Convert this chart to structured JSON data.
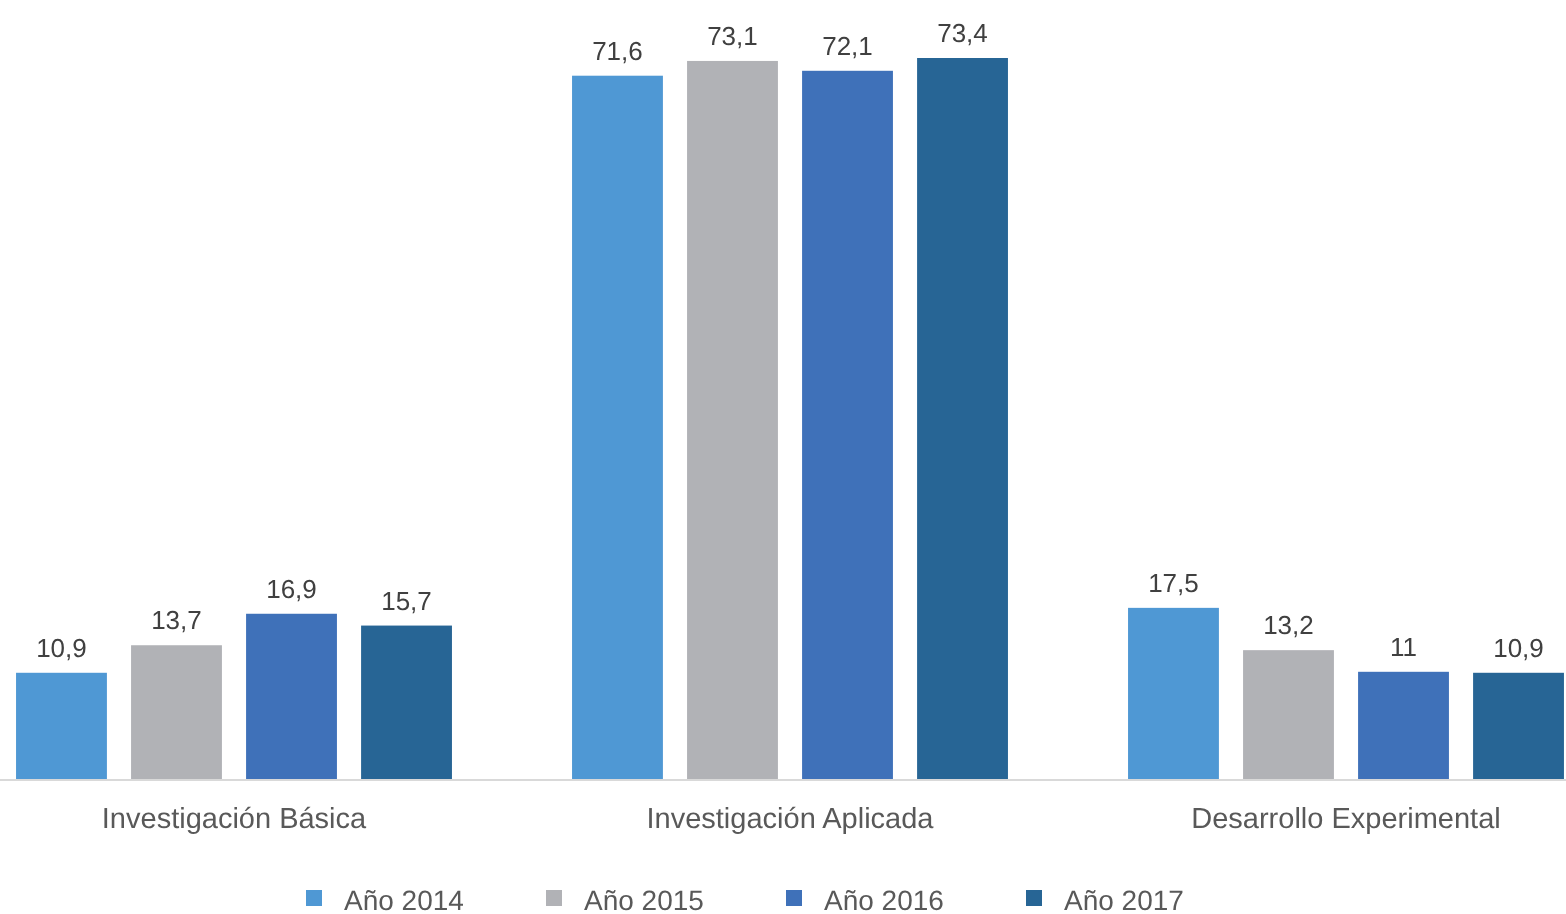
{
  "chart_data": {
    "type": "bar",
    "categories": [
      "Investigación Básica",
      "Investigación Aplicada",
      "Desarrollo Experimental"
    ],
    "series": [
      {
        "name": "Año 2014",
        "color": "#4f98d4",
        "values": [
          10.9,
          71.6,
          17.5
        ],
        "value_labels": [
          "10,9",
          "71,6",
          "17,5"
        ]
      },
      {
        "name": "Año 2015",
        "color": "#b1b2b6",
        "values": [
          13.7,
          73.1,
          13.2
        ],
        "value_labels": [
          "13,7",
          "73,1",
          "13,2"
        ]
      },
      {
        "name": "Año 2016",
        "color": "#3f71b9",
        "values": [
          16.9,
          72.1,
          11
        ],
        "value_labels": [
          "16,9",
          "72,1",
          "11"
        ]
      },
      {
        "name": "Año 2017",
        "color": "#276595",
        "values": [
          15.7,
          73.4,
          10.9
        ],
        "value_labels": [
          "15,7",
          "73,4",
          "10,9"
        ]
      }
    ],
    "tick_labels": "x",
    "legend": "bottom"
  }
}
